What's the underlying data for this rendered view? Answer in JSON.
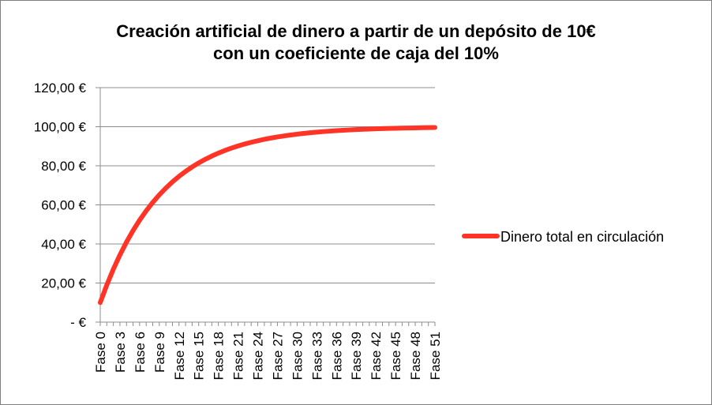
{
  "chart_data": {
    "type": "line",
    "title_line1": "Creación artificial de dinero a partir de un depósito de 10€",
    "title_line2": "con un coeficiente de caja del 10%",
    "xlabel": "",
    "ylabel": "",
    "ylim": [
      0,
      120
    ],
    "y_ticks": [
      {
        "value": 0,
        "label": "-   €"
      },
      {
        "value": 20,
        "label": "20,00 €"
      },
      {
        "value": 40,
        "label": "40,00 €"
      },
      {
        "value": 60,
        "label": "60,00 €"
      },
      {
        "value": 80,
        "label": "80,00 €"
      },
      {
        "value": 100,
        "label": "100,00 €"
      },
      {
        "value": 120,
        "label": "120,00 €"
      }
    ],
    "x_labels_visible": [
      "Fase 0",
      "Fase 3",
      "Fase 6",
      "Fase 9",
      "Fase 12",
      "Fase 15",
      "Fase 18",
      "Fase 21",
      "Fase 24",
      "Fase 27",
      "Fase 30",
      "Fase 33",
      "Fase 36",
      "Fase 39",
      "Fase 42",
      "Fase 45",
      "Fase 48",
      "Fase 51"
    ],
    "x_label_step": 3,
    "num_points": 52,
    "grid": true,
    "legend_position": "right",
    "series": [
      {
        "name": "Dinero total en circulación",
        "color": "#ff3326",
        "x": [
          "Fase 0",
          "Fase 1",
          "Fase 2",
          "Fase 3",
          "Fase 4",
          "Fase 5",
          "Fase 6",
          "Fase 7",
          "Fase 8",
          "Fase 9",
          "Fase 10",
          "Fase 11",
          "Fase 12",
          "Fase 13",
          "Fase 14",
          "Fase 15",
          "Fase 16",
          "Fase 17",
          "Fase 18",
          "Fase 19",
          "Fase 20",
          "Fase 21",
          "Fase 22",
          "Fase 23",
          "Fase 24",
          "Fase 25",
          "Fase 26",
          "Fase 27",
          "Fase 28",
          "Fase 29",
          "Fase 30",
          "Fase 31",
          "Fase 32",
          "Fase 33",
          "Fase 34",
          "Fase 35",
          "Fase 36",
          "Fase 37",
          "Fase 38",
          "Fase 39",
          "Fase 40",
          "Fase 41",
          "Fase 42",
          "Fase 43",
          "Fase 44",
          "Fase 45",
          "Fase 46",
          "Fase 47",
          "Fase 48",
          "Fase 49",
          "Fase 50",
          "Fase 51"
        ],
        "values": [
          10.0,
          19.0,
          27.1,
          34.39,
          40.95,
          46.86,
          52.17,
          56.95,
          61.26,
          65.13,
          68.62,
          71.76,
          74.58,
          77.12,
          79.41,
          81.47,
          83.32,
          84.99,
          86.49,
          87.84,
          89.06,
          90.15,
          91.14,
          92.02,
          92.82,
          93.54,
          94.19,
          94.77,
          95.29,
          95.76,
          96.19,
          96.57,
          96.91,
          97.22,
          97.5,
          97.75,
          97.97,
          98.17,
          98.36,
          98.52,
          98.67,
          98.8,
          98.92,
          99.03,
          99.12,
          99.21,
          99.29,
          99.36,
          99.42,
          99.48,
          99.53,
          99.58
        ]
      }
    ]
  }
}
